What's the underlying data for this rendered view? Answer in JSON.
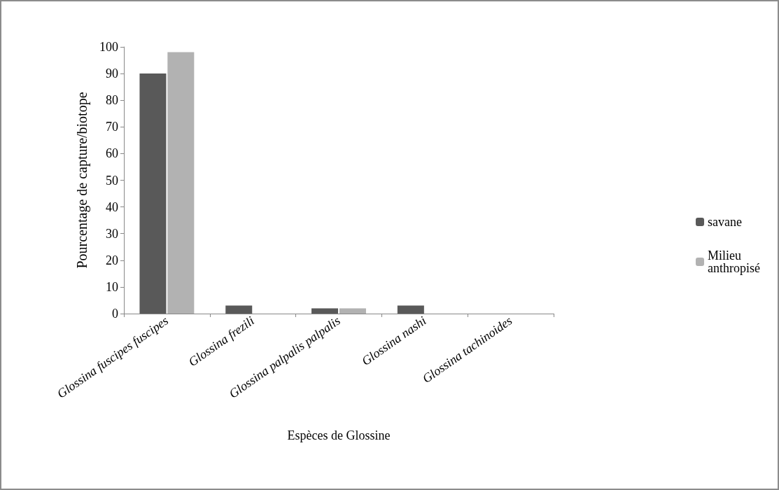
{
  "chart_data": {
    "type": "bar",
    "categories": [
      "Glossina fuscipes fuscipes",
      "Glossina frezili",
      "Glossina palpalis palpalis",
      "Glossina nashi",
      "Glossina tachinoides"
    ],
    "series": [
      {
        "name": "savane",
        "color": "#595959",
        "values": [
          90,
          3,
          2,
          3,
          0
        ]
      },
      {
        "name": "Milieu anthropisé",
        "color": "#b2b2b2",
        "values": [
          98,
          0,
          2,
          0,
          0
        ]
      }
    ],
    "xlabel": "Espèces de Glossine",
    "ylabel": "Pourcentage de capture/biotope",
    "ylim": [
      0,
      100
    ],
    "yticks": [
      0,
      10,
      20,
      30,
      40,
      50,
      60,
      70,
      80,
      90,
      100
    ],
    "grid": false,
    "legend": "right"
  }
}
